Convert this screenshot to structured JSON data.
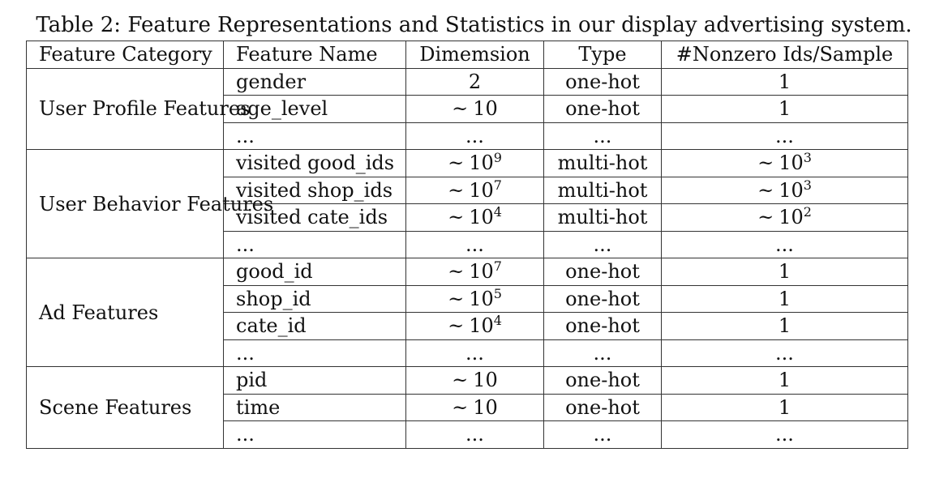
{
  "caption": "Table 2: Feature Representations and Statistics in our display advertising system.",
  "headers": {
    "category": "Feature Category",
    "name": "Feature Name",
    "dimension": "Dimemsion",
    "type": "Type",
    "nonzero": "#Nonzero Ids/Sample"
  },
  "groups": [
    {
      "category": "User Profile Features",
      "rows": [
        {
          "name": "gender",
          "dim": {
            "approx": false,
            "base": "2",
            "exp": ""
          },
          "type": "one-hot",
          "nonzero": {
            "approx": false,
            "base": "1",
            "exp": ""
          }
        },
        {
          "name": "age_level",
          "dim": {
            "approx": true,
            "base": "10",
            "exp": ""
          },
          "type": "one-hot",
          "nonzero": {
            "approx": false,
            "base": "1",
            "exp": ""
          }
        },
        {
          "name": "...",
          "dim": {
            "approx": false,
            "base": "...",
            "exp": ""
          },
          "type": "...",
          "nonzero": {
            "approx": false,
            "base": "...",
            "exp": ""
          }
        }
      ]
    },
    {
      "category": "User Behavior Features",
      "rows": [
        {
          "name": "visited good_ids",
          "dim": {
            "approx": true,
            "base": "10",
            "exp": "9"
          },
          "type": "multi-hot",
          "nonzero": {
            "approx": true,
            "base": "10",
            "exp": "3"
          }
        },
        {
          "name": "visited shop_ids",
          "dim": {
            "approx": true,
            "base": "10",
            "exp": "7"
          },
          "type": "multi-hot",
          "nonzero": {
            "approx": true,
            "base": "10",
            "exp": "3"
          }
        },
        {
          "name": "visited cate_ids",
          "dim": {
            "approx": true,
            "base": "10",
            "exp": "4"
          },
          "type": "multi-hot",
          "nonzero": {
            "approx": true,
            "base": "10",
            "exp": "2"
          }
        },
        {
          "name": "...",
          "dim": {
            "approx": false,
            "base": "...",
            "exp": ""
          },
          "type": "...",
          "nonzero": {
            "approx": false,
            "base": "...",
            "exp": ""
          }
        }
      ]
    },
    {
      "category": "Ad Features",
      "rows": [
        {
          "name": "good_id",
          "dim": {
            "approx": true,
            "base": "10",
            "exp": "7"
          },
          "type": "one-hot",
          "nonzero": {
            "approx": false,
            "base": "1",
            "exp": ""
          }
        },
        {
          "name": "shop_id",
          "dim": {
            "approx": true,
            "base": "10",
            "exp": "5"
          },
          "type": "one-hot",
          "nonzero": {
            "approx": false,
            "base": "1",
            "exp": ""
          }
        },
        {
          "name": "cate_id",
          "dim": {
            "approx": true,
            "base": "10",
            "exp": "4"
          },
          "type": "one-hot",
          "nonzero": {
            "approx": false,
            "base": "1",
            "exp": ""
          }
        },
        {
          "name": "...",
          "dim": {
            "approx": false,
            "base": "...",
            "exp": ""
          },
          "type": "...",
          "nonzero": {
            "approx": false,
            "base": "...",
            "exp": ""
          }
        }
      ]
    },
    {
      "category": "Scene Features",
      "rows": [
        {
          "name": "pid",
          "dim": {
            "approx": true,
            "base": "10",
            "exp": ""
          },
          "type": "one-hot",
          "nonzero": {
            "approx": false,
            "base": "1",
            "exp": ""
          }
        },
        {
          "name": "time",
          "dim": {
            "approx": true,
            "base": "10",
            "exp": ""
          },
          "type": "one-hot",
          "nonzero": {
            "approx": false,
            "base": "1",
            "exp": ""
          }
        },
        {
          "name": "...",
          "dim": {
            "approx": false,
            "base": "...",
            "exp": ""
          },
          "type": "...",
          "nonzero": {
            "approx": false,
            "base": "...",
            "exp": ""
          }
        }
      ]
    }
  ],
  "approx_symbol": "~"
}
